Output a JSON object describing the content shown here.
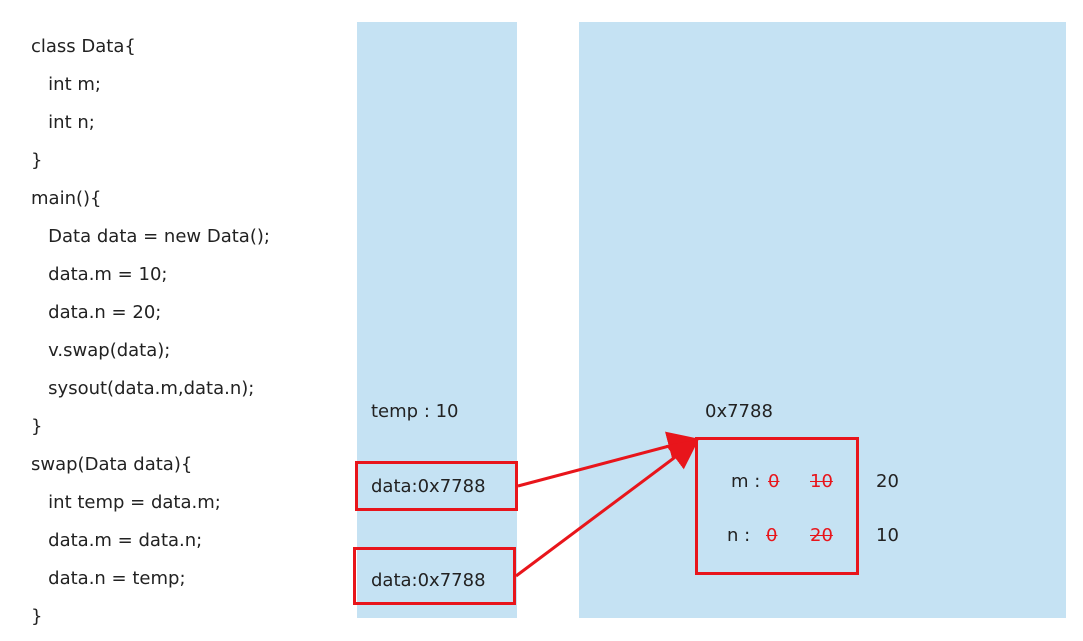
{
  "code_lines": [
    "class Data{",
    "   int m;",
    "   int n;",
    "}",
    "main(){",
    "   Data data = new Data();",
    "   data.m = 10;",
    "   data.n = 20;",
    "   v.swap(data);",
    "   sysout(data.m,data.n);",
    "}",
    "swap(Data data){",
    "   int temp = data.m;",
    "   data.m = data.n;",
    "   data.n = temp;",
    "}"
  ],
  "stack": {
    "temp_label": "temp : 10",
    "frame_swap_data": "data:0x7788",
    "frame_main_data": "data:0x7788"
  },
  "heap": {
    "address": "0x7788",
    "m_label": "m :",
    "m_old_1": "0",
    "m_old_2": "10",
    "m_new": "20",
    "n_label": "n :",
    "n_old_1": "0",
    "n_old_2": "20",
    "n_new": "10"
  },
  "colors": {
    "panel": "#c5e2f3",
    "highlight": "#e8151b"
  }
}
